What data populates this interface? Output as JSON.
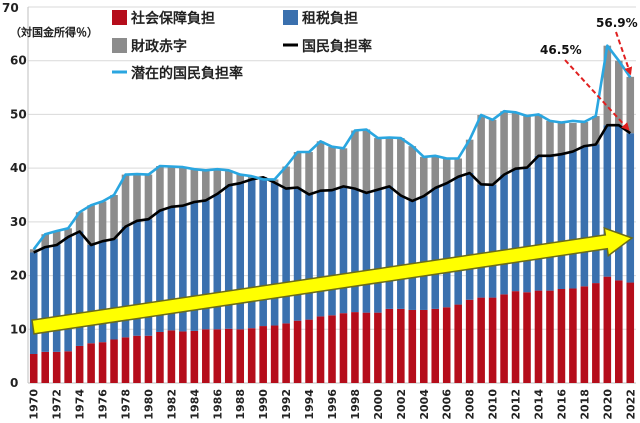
{
  "chart_data": {
    "type": "bar",
    "unit_label": "（対国金所得％）",
    "ylim": [
      0,
      70
    ],
    "yticks": [
      0,
      10,
      20,
      30,
      40,
      50,
      60,
      70
    ],
    "grid": true,
    "legend_position": "top-left",
    "colors": {
      "social": "#b50d1b",
      "tax": "#3a70ae",
      "deficit": "#8c8c8c",
      "national": "#000000",
      "potential": "#2aa6e0",
      "arrow": "#ffff00",
      "arrow_outline": "#6b6b1a",
      "annotation": "#e02020"
    },
    "categories": [
      "1970",
      "1971",
      "1972",
      "1973",
      "1974",
      "1975",
      "1976",
      "1977",
      "1978",
      "1979",
      "1980",
      "1981",
      "1982",
      "1983",
      "1984",
      "1985",
      "1986",
      "1987",
      "1988",
      "1989",
      "1990",
      "1991",
      "1992",
      "1993",
      "1994",
      "1995",
      "1996",
      "1997",
      "1998",
      "1999",
      "2000",
      "2001",
      "2002",
      "2003",
      "2004",
      "2005",
      "2006",
      "2007",
      "2008",
      "2009",
      "2010",
      "2011",
      "2012",
      "2013",
      "2014",
      "2015",
      "2016",
      "2017",
      "2018",
      "2019",
      "2020",
      "2021",
      "2022"
    ],
    "x_tick_labels": [
      "1970",
      "",
      "1972",
      "",
      "1974",
      "",
      "1976",
      "",
      "1978",
      "",
      "1980",
      "",
      "1982",
      "",
      "1984",
      "",
      "1986",
      "",
      "1988",
      "",
      "1990",
      "",
      "1992",
      "",
      "1994",
      "",
      "1996",
      "",
      "1998",
      "",
      "2000",
      "",
      "2002",
      "",
      "2004",
      "",
      "2006",
      "",
      "2008",
      "",
      "2010",
      "",
      "2012",
      "",
      "2014",
      "",
      "2016",
      "",
      "2018",
      "",
      "2020",
      "",
      "2022"
    ],
    "series": [
      {
        "name": "社会保障負担",
        "kind": "stack",
        "values": [
          5.4,
          5.8,
          5.8,
          5.9,
          6.9,
          7.4,
          7.6,
          8.1,
          8.5,
          8.8,
          8.8,
          9.5,
          9.8,
          9.6,
          9.7,
          10.0,
          10.0,
          10.1,
          10.0,
          10.2,
          10.6,
          10.7,
          11.1,
          11.6,
          11.8,
          12.4,
          12.6,
          13.0,
          13.2,
          13.1,
          13.1,
          13.8,
          13.8,
          13.6,
          13.6,
          13.8,
          14.1,
          14.6,
          15.5,
          15.9,
          15.9,
          16.5,
          17.1,
          16.9,
          17.2,
          17.2,
          17.5,
          17.6,
          18.0,
          18.6,
          19.8,
          19.1,
          18.7
        ]
      },
      {
        "name": "租税負担",
        "kind": "stack",
        "values": [
          18.9,
          19.5,
          19.9,
          21.3,
          21.3,
          18.3,
          18.8,
          18.7,
          20.6,
          21.4,
          21.7,
          22.6,
          23.0,
          23.4,
          24.0,
          24.0,
          25.2,
          26.7,
          27.2,
          27.7,
          27.7,
          26.6,
          25.1,
          24.8,
          23.3,
          23.4,
          23.3,
          23.6,
          23.0,
          22.3,
          22.9,
          22.8,
          21.1,
          20.3,
          21.2,
          22.5,
          23.1,
          23.8,
          23.6,
          21.1,
          21.0,
          22.3,
          22.8,
          23.2,
          25.1,
          25.1,
          25.1,
          25.5,
          26.1,
          25.8,
          28.2,
          28.9,
          27.8
        ]
      },
      {
        "name": "財政赤字",
        "kind": "stack",
        "values": [
          0.6,
          2.4,
          2.6,
          1.6,
          3.6,
          7.4,
          7.4,
          8.2,
          9.7,
          8.7,
          8.3,
          8.3,
          7.5,
          7.2,
          6.1,
          5.6,
          4.6,
          2.8,
          1.6,
          0.6,
          -0.4,
          0.6,
          4.1,
          6.6,
          7.9,
          9.2,
          8.1,
          7.1,
          10.8,
          11.8,
          9.6,
          9.1,
          10.7,
          10.2,
          7.3,
          6.0,
          4.6,
          3.4,
          6.2,
          12.9,
          12.1,
          11.8,
          10.5,
          9.6,
          7.7,
          6.5,
          5.9,
          5.3,
          4.5,
          5.3,
          14.8,
          12.0,
          10.5
        ]
      },
      {
        "name": "国民負担率",
        "kind": "line",
        "values": [
          24.3,
          25.3,
          25.7,
          27.2,
          28.2,
          25.7,
          26.4,
          26.8,
          29.1,
          30.2,
          30.5,
          32.1,
          32.8,
          33.0,
          33.7,
          34.0,
          35.2,
          36.8,
          37.2,
          37.9,
          38.3,
          37.3,
          36.2,
          36.4,
          35.1,
          35.8,
          35.9,
          36.6,
          36.2,
          35.4,
          36.0,
          36.6,
          34.9,
          33.9,
          34.8,
          36.3,
          37.2,
          38.4,
          39.1,
          37.0,
          36.9,
          38.8,
          39.9,
          40.1,
          42.3,
          42.3,
          42.6,
          43.1,
          44.1,
          44.4,
          48.0,
          48.0,
          46.5
        ]
      },
      {
        "name": "潜在的国民負担率",
        "kind": "line",
        "values": [
          24.9,
          27.7,
          28.3,
          28.8,
          31.8,
          33.1,
          33.8,
          35.0,
          38.8,
          38.9,
          38.8,
          40.4,
          40.3,
          40.2,
          39.8,
          39.6,
          39.8,
          39.6,
          38.8,
          38.5,
          37.9,
          37.9,
          40.3,
          43.0,
          43.0,
          45.0,
          44.0,
          43.7,
          47.0,
          47.2,
          45.6,
          45.7,
          45.6,
          44.1,
          42.1,
          42.3,
          41.8,
          41.8,
          45.3,
          49.9,
          49.0,
          50.6,
          50.4,
          49.7,
          50.0,
          48.8,
          48.5,
          48.8,
          48.6,
          49.7,
          62.8,
          60.0,
          56.9
        ]
      }
    ],
    "annotations": [
      {
        "text": "56.9%"
      },
      {
        "text": "46.5%"
      }
    ]
  }
}
